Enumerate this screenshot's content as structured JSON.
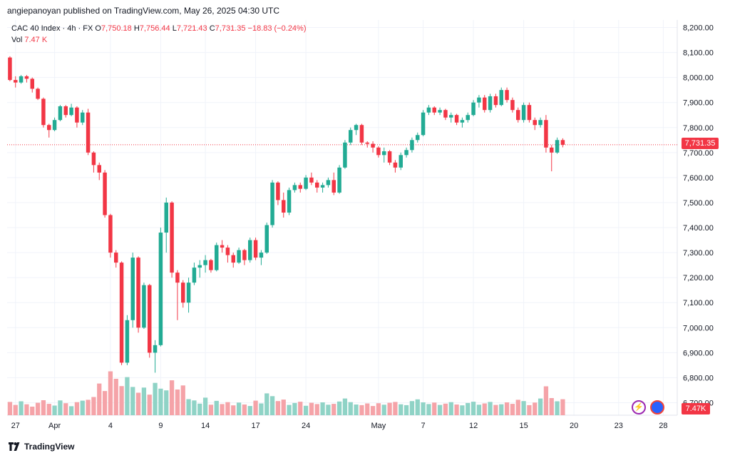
{
  "header": {
    "publisher_line": "angiepanoyan published on TradingView.com, May 26, 2025 04:30 UTC"
  },
  "legend": {
    "symbol": "CAC 40 Index · 4h · FX",
    "o_label": "O",
    "o": "7,750.18",
    "h_label": "H",
    "h": "7,756.44",
    "l_label": "L",
    "l": "7,721.43",
    "c_label": "C",
    "c": "7,731.35",
    "change": "−18.83 (−0.24%)",
    "vol_label": "Vol",
    "vol": "7.47 K"
  },
  "badges": {
    "price": "7,731.35",
    "volume": "7.47K"
  },
  "footer": {
    "brand": "TradingView"
  },
  "colors": {
    "up": "#22ab94",
    "down": "#f23645",
    "up_vol": "#8fd3c6",
    "down_vol": "#f5a3a8",
    "grid": "#f0f3fa"
  },
  "icons": {
    "bolt": "lightning-icon",
    "globe": "globe-icon",
    "logo": "tradingview-logo-icon"
  },
  "chart_data": {
    "type": "candlestick",
    "title": "CAC 40 Index · 4h · FX",
    "y_ticks": [
      "8,200.00",
      "8,100.00",
      "8,000.00",
      "7,900.00",
      "7,800.00",
      "7,700.00",
      "7,600.00",
      "7,500.00",
      "7,400.00",
      "7,300.00",
      "7,200.00",
      "7,100.00",
      "7,000.00",
      "6,900.00",
      "6,800.00",
      "6,700.00"
    ],
    "ylim": [
      6650,
      8230
    ],
    "x_ticks": [
      {
        "label": "27",
        "i": 1
      },
      {
        "label": "Apr",
        "i": 8
      },
      {
        "label": "4",
        "i": 18
      },
      {
        "label": "9",
        "i": 27
      },
      {
        "label": "14",
        "i": 35
      },
      {
        "label": "17",
        "i": 44
      },
      {
        "label": "24",
        "i": 53
      },
      {
        "label": "May",
        "i": 66
      },
      {
        "label": "7",
        "i": 74
      },
      {
        "label": "12",
        "i": 83
      },
      {
        "label": "15",
        "i": 92
      },
      {
        "label": "20",
        "i": 101
      },
      {
        "label": "23",
        "i": 109
      },
      {
        "label": "28",
        "i": 117
      }
    ],
    "last_price": 7731.35,
    "ohlc": [
      [
        8080,
        8085,
        7985,
        7990
      ],
      [
        7990,
        8005,
        7960,
        7980
      ],
      [
        7980,
        8010,
        7975,
        8005
      ],
      [
        8005,
        8010,
        7980,
        7995
      ],
      [
        7995,
        8000,
        7940,
        7955
      ],
      [
        7955,
        7960,
        7910,
        7915
      ],
      [
        7915,
        7920,
        7800,
        7810
      ],
      [
        7810,
        7815,
        7760,
        7790
      ],
      [
        7790,
        7840,
        7785,
        7830
      ],
      [
        7830,
        7890,
        7825,
        7885
      ],
      [
        7885,
        7890,
        7840,
        7850
      ],
      [
        7850,
        7895,
        7845,
        7880
      ],
      [
        7880,
        7885,
        7800,
        7820
      ],
      [
        7820,
        7870,
        7810,
        7860
      ],
      [
        7860,
        7875,
        7690,
        7700
      ],
      [
        7700,
        7705,
        7620,
        7650
      ],
      [
        7650,
        7660,
        7590,
        7620
      ],
      [
        7620,
        7630,
        7440,
        7450
      ],
      [
        7450,
        7455,
        7280,
        7300
      ],
      [
        7300,
        7310,
        7240,
        7260
      ],
      [
        7260,
        7265,
        6850,
        6860
      ],
      [
        6860,
        7050,
        6850,
        7030
      ],
      [
        7030,
        7300,
        7000,
        7280
      ],
      [
        7280,
        7285,
        6980,
        7000
      ],
      [
        7000,
        7180,
        6995,
        7170
      ],
      [
        7170,
        7175,
        6880,
        6900
      ],
      [
        6900,
        6950,
        6820,
        6930
      ],
      [
        6930,
        7400,
        6925,
        7380
      ],
      [
        7380,
        7520,
        7300,
        7500
      ],
      [
        7500,
        7505,
        7200,
        7220
      ],
      [
        7220,
        7230,
        7030,
        7180
      ],
      [
        7180,
        7190,
        7080,
        7100
      ],
      [
        7100,
        7200,
        7060,
        7180
      ],
      [
        7180,
        7260,
        7170,
        7240
      ],
      [
        7240,
        7270,
        7200,
        7250
      ],
      [
        7250,
        7290,
        7220,
        7270
      ],
      [
        7270,
        7275,
        7220,
        7230
      ],
      [
        7230,
        7340,
        7225,
        7330
      ],
      [
        7330,
        7350,
        7300,
        7320
      ],
      [
        7320,
        7330,
        7260,
        7290
      ],
      [
        7290,
        7300,
        7240,
        7260
      ],
      [
        7260,
        7320,
        7255,
        7310
      ],
      [
        7310,
        7315,
        7250,
        7270
      ],
      [
        7270,
        7360,
        7260,
        7350
      ],
      [
        7350,
        7360,
        7270,
        7280
      ],
      [
        7280,
        7310,
        7250,
        7300
      ],
      [
        7300,
        7420,
        7295,
        7410
      ],
      [
        7410,
        7590,
        7400,
        7580
      ],
      [
        7580,
        7585,
        7490,
        7510
      ],
      [
        7510,
        7540,
        7440,
        7460
      ],
      [
        7460,
        7560,
        7450,
        7550
      ],
      [
        7550,
        7580,
        7540,
        7570
      ],
      [
        7570,
        7580,
        7540,
        7555
      ],
      [
        7555,
        7610,
        7550,
        7600
      ],
      [
        7600,
        7620,
        7570,
        7580
      ],
      [
        7580,
        7590,
        7540,
        7560
      ],
      [
        7560,
        7580,
        7540,
        7570
      ],
      [
        7570,
        7600,
        7560,
        7590
      ],
      [
        7590,
        7620,
        7530,
        7540
      ],
      [
        7540,
        7650,
        7535,
        7640
      ],
      [
        7640,
        7750,
        7635,
        7740
      ],
      [
        7740,
        7800,
        7730,
        7790
      ],
      [
        7790,
        7815,
        7770,
        7810
      ],
      [
        7810,
        7815,
        7730,
        7740
      ],
      [
        7740,
        7745,
        7720,
        7735
      ],
      [
        7735,
        7745,
        7700,
        7720
      ],
      [
        7720,
        7725,
        7680,
        7690
      ],
      [
        7690,
        7720,
        7660,
        7705
      ],
      [
        7705,
        7710,
        7650,
        7660
      ],
      [
        7660,
        7670,
        7620,
        7640
      ],
      [
        7640,
        7700,
        7630,
        7690
      ],
      [
        7690,
        7720,
        7680,
        7710
      ],
      [
        7710,
        7760,
        7700,
        7750
      ],
      [
        7750,
        7780,
        7740,
        7770
      ],
      [
        7770,
        7870,
        7765,
        7860
      ],
      [
        7860,
        7890,
        7850,
        7880
      ],
      [
        7880,
        7885,
        7850,
        7860
      ],
      [
        7860,
        7880,
        7850,
        7870
      ],
      [
        7870,
        7875,
        7830,
        7840
      ],
      [
        7840,
        7860,
        7820,
        7850
      ],
      [
        7850,
        7855,
        7810,
        7820
      ],
      [
        7820,
        7840,
        7800,
        7830
      ],
      [
        7830,
        7860,
        7820,
        7850
      ],
      [
        7850,
        7910,
        7845,
        7900
      ],
      [
        7900,
        7930,
        7880,
        7920
      ],
      [
        7920,
        7930,
        7860,
        7870
      ],
      [
        7870,
        7935,
        7860,
        7925
      ],
      [
        7925,
        7935,
        7880,
        7890
      ],
      [
        7890,
        7960,
        7885,
        7950
      ],
      [
        7950,
        7960,
        7900,
        7910
      ],
      [
        7910,
        7920,
        7860,
        7870
      ],
      [
        7870,
        7880,
        7820,
        7830
      ],
      [
        7830,
        7900,
        7820,
        7890
      ],
      [
        7890,
        7900,
        7820,
        7830
      ],
      [
        7830,
        7840,
        7790,
        7810
      ],
      [
        7810,
        7840,
        7800,
        7830
      ],
      [
        7830,
        7850,
        7700,
        7720
      ],
      [
        7720,
        7730,
        7625,
        7700
      ],
      [
        7700,
        7760,
        7695,
        7750
      ],
      [
        7750,
        7757,
        7721,
        7731
      ]
    ],
    "volume": [
      6.2,
      4.8,
      6.5,
      5.1,
      4.0,
      5.8,
      7.0,
      5.3,
      4.5,
      6.9,
      5.6,
      4.2,
      6.1,
      6.8,
      7.2,
      8.5,
      14.8,
      11.3,
      20.5,
      17.0,
      13.6,
      17.8,
      13.2,
      10.5,
      12.9,
      9.6,
      15.1,
      12.4,
      11.6,
      16.3,
      12.0,
      13.9,
      7.5,
      6.9,
      5.4,
      8.2,
      4.9,
      6.7,
      5.2,
      6.1,
      4.6,
      5.9,
      5.0,
      4.3,
      6.8,
      5.5,
      10.2,
      8.9,
      6.6,
      7.3,
      4.8,
      5.7,
      6.3,
      4.4,
      5.8,
      5.2,
      6.0,
      4.9,
      5.3,
      6.4,
      7.8,
      6.1,
      5.0,
      4.7,
      5.5,
      4.3,
      5.6,
      4.9,
      5.8,
      6.2,
      5.1,
      4.7,
      6.6,
      7.4,
      6.0,
      5.2,
      5.9,
      4.8,
      5.4,
      6.1,
      5.0,
      4.6,
      5.7,
      6.3,
      4.9,
      5.5,
      6.2,
      4.8,
      5.1,
      6.0,
      5.3,
      7.2,
      6.6,
      4.7,
      5.9,
      7.8,
      13.5,
      8.0,
      6.5,
      7.47
    ],
    "volume_ylim": [
      0,
      30
    ]
  }
}
